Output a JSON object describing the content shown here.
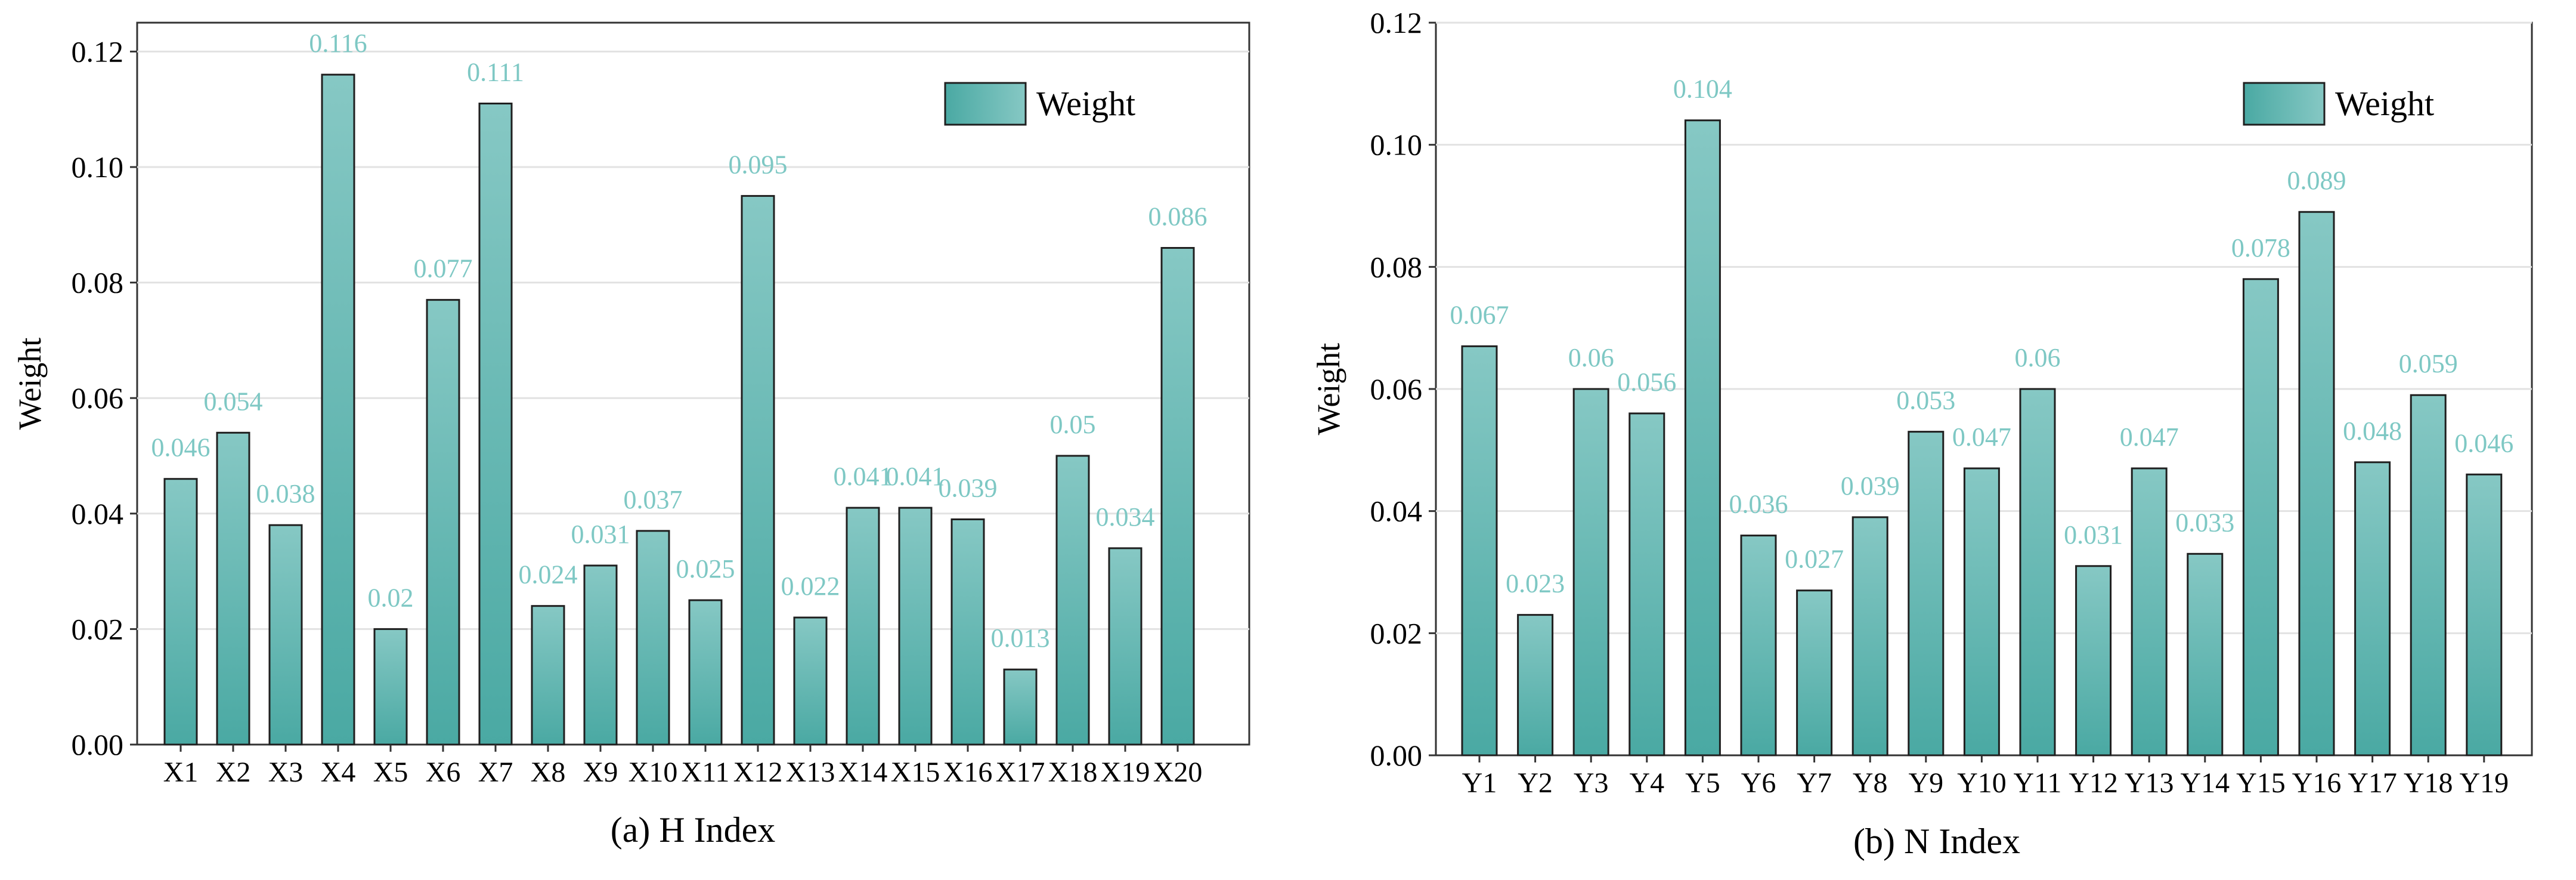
{
  "colors": {
    "bar_top": "#86c8c4",
    "bar_bottom": "#4aa9a3",
    "bar_stroke": "#1f1f1f",
    "data_label": "#7ec8c4",
    "grid": "#e2e2e2"
  },
  "chart_data": [
    {
      "type": "bar",
      "title": "",
      "caption": "(a) H Index",
      "xlabel": "",
      "ylabel": "Weight",
      "legend": "Weight",
      "legend_position": "top-right",
      "ylim": [
        0,
        0.125
      ],
      "yticks": [
        "0.00",
        "0.02",
        "0.04",
        "0.06",
        "0.08",
        "0.10",
        "0.12"
      ],
      "grid": true,
      "categories": [
        "X1",
        "X2",
        "X3",
        "X4",
        "X5",
        "X6",
        "X7",
        "X8",
        "X9",
        "X10",
        "X11",
        "X12",
        "X13",
        "X14",
        "X15",
        "X16",
        "X17",
        "X18",
        "X19",
        "X20"
      ],
      "values": [
        0.046,
        0.054,
        0.038,
        0.116,
        0.02,
        0.077,
        0.111,
        0.024,
        0.031,
        0.037,
        0.025,
        0.095,
        0.022,
        0.041,
        0.041,
        0.039,
        0.013,
        0.05,
        0.034,
        0.086
      ],
      "value_labels": [
        "0.046",
        "0.054",
        "0.038",
        "0.116",
        "0.02",
        "0.077",
        "0.111",
        "0.024",
        "0.031",
        "0.037",
        "0.025",
        "0.095",
        "0.022",
        "0.041",
        "0.041",
        "0.039",
        "0.013",
        "0.05",
        "0.034",
        "0.086"
      ]
    },
    {
      "type": "bar",
      "title": "",
      "caption": "(b) N Index",
      "xlabel": "",
      "ylabel": "Weight",
      "legend": "Weight",
      "legend_position": "top-right",
      "ylim": [
        0,
        0.12
      ],
      "yticks": [
        "0.00",
        "0.02",
        "0.04",
        "0.06",
        "0.08",
        "0.10",
        "0.12"
      ],
      "grid": true,
      "categories": [
        "Y1",
        "Y2",
        "Y3",
        "Y4",
        "Y5",
        "Y6",
        "Y7",
        "Y8",
        "Y9",
        "Y10",
        "Y11",
        "Y12",
        "Y13",
        "Y14",
        "Y15",
        "Y16",
        "Y17",
        "Y18",
        "Y19"
      ],
      "values": [
        0.067,
        0.023,
        0.06,
        0.056,
        0.104,
        0.036,
        0.027,
        0.039,
        0.053,
        0.047,
        0.06,
        0.031,
        0.047,
        0.033,
        0.078,
        0.089,
        0.048,
        0.059,
        0.046
      ],
      "value_labels": [
        "0.067",
        "0.023",
        "0.06",
        "0.056",
        "0.104",
        "0.036",
        "0.027",
        "0.039",
        "0.053",
        "0.047",
        "0.06",
        "0.031",
        "0.047",
        "0.033",
        "0.078",
        "0.089",
        "0.048",
        "0.059",
        "0.046"
      ]
    }
  ]
}
